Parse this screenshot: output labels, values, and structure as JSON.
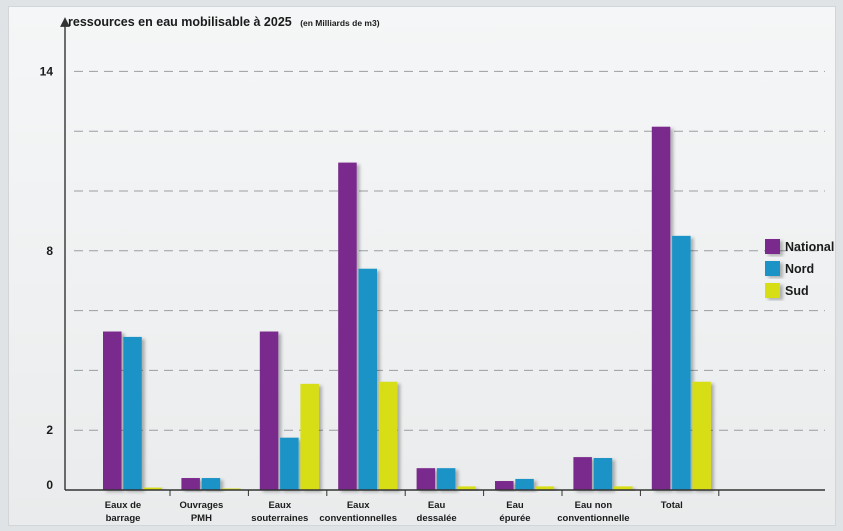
{
  "chart_data": {
    "type": "bar",
    "title": "ressources en eau mobilisable à 2025",
    "title_unit": "(en Milliards de m3)",
    "categories": [
      [
        "Eaux de",
        "barrage"
      ],
      [
        "Ouvrages",
        "PMH"
      ],
      [
        "Eaux",
        "souterraines"
      ],
      [
        "Eaux",
        "conventionnelles"
      ],
      [
        "Eau",
        "dessalée"
      ],
      [
        "Eau",
        "épurée"
      ],
      [
        "Eau non",
        "conventionnelle"
      ],
      [
        "Total"
      ]
    ],
    "series": [
      {
        "name": "National",
        "color": "#7a2a8c",
        "values": [
          5.3,
          0.4,
          5.3,
          10.95,
          0.73,
          0.3,
          1.1,
          12.15
        ]
      },
      {
        "name": "Nord",
        "color": "#1b93c6",
        "values": [
          5.12,
          0.4,
          1.75,
          7.4,
          0.73,
          0.37,
          1.07,
          8.5
        ]
      },
      {
        "name": "Sud",
        "color": "#d7de18",
        "values": [
          0.08,
          0.05,
          3.55,
          3.62,
          0.12,
          0.12,
          0.12,
          3.62
        ]
      }
    ],
    "yticks": [
      0,
      2,
      8,
      14
    ],
    "ylim": [
      0,
      14.8
    ],
    "grid": true,
    "legend_position": "right"
  }
}
